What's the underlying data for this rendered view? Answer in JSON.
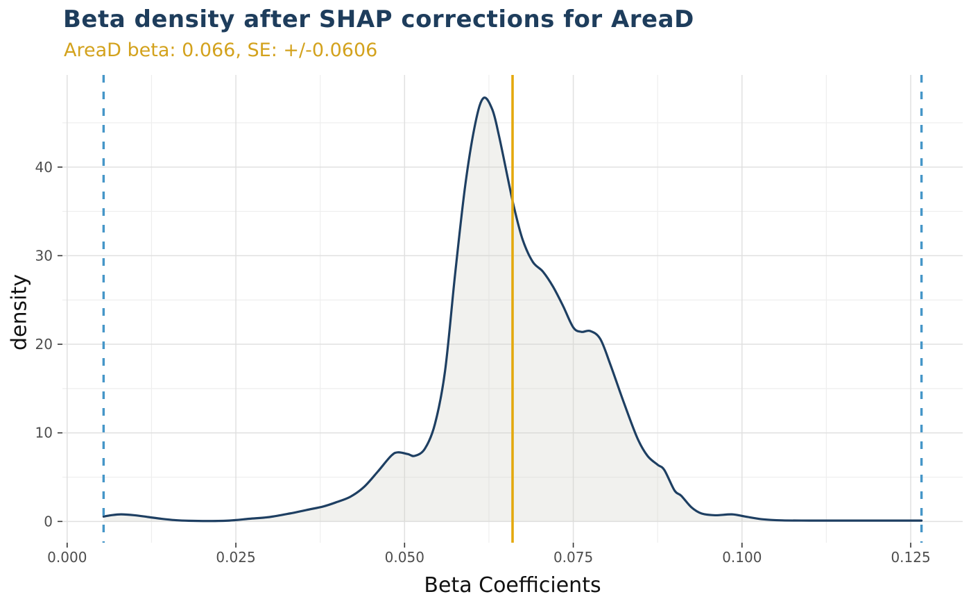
{
  "header": {
    "title": "Beta density after SHAP corrections for AreaD",
    "subtitle": "AreaD beta: 0.066, SE: +/-0.0606"
  },
  "axes": {
    "x_title": "Beta Coefficients",
    "y_title": "density"
  },
  "colors": {
    "title": "#1e3d5c",
    "subtitle": "#d3a21d",
    "curve": "#1e3f62",
    "area_fill": "rgba(209,209,199,0.30)",
    "mean_line": "#e4a90e",
    "se_line": "#4596c8",
    "grid_major": "#e0e0e0",
    "grid_minor": "#eeeeee",
    "tick": "#333333",
    "tick_label": "#4d4d4d",
    "axis_title": "#111111",
    "background": "#ffffff"
  },
  "chart_data": {
    "type": "area",
    "title": "Beta density after SHAP corrections for AreaD",
    "subtitle": "AreaD beta: 0.066, SE: +/-0.0606",
    "xlabel": "Beta Coefficients",
    "ylabel": "density",
    "grid": true,
    "legend": false,
    "xlim": [
      -0.0007,
      0.1327
    ],
    "ylim": [
      -2.4,
      50.4
    ],
    "x_ticks": {
      "values": [
        0.0,
        0.025,
        0.05,
        0.075,
        0.1,
        0.125
      ],
      "labels": [
        "0.000",
        "0.025",
        "0.050",
        "0.075",
        "0.100",
        "0.125"
      ]
    },
    "y_ticks": {
      "values": [
        0,
        10,
        20,
        30,
        40
      ],
      "labels": [
        "0",
        "10",
        "20",
        "30",
        "40"
      ]
    },
    "x_minor": [
      0.0125,
      0.0375,
      0.0625,
      0.0875,
      0.1125
    ],
    "y_minor": [
      5,
      15,
      25,
      35,
      45
    ],
    "series": [
      {
        "name": "beta-density",
        "x": [
          0.0054,
          0.0065,
          0.008,
          0.01,
          0.012,
          0.014,
          0.016,
          0.018,
          0.021,
          0.024,
          0.027,
          0.03,
          0.033,
          0.0355,
          0.038,
          0.04,
          0.042,
          0.044,
          0.046,
          0.048,
          0.049,
          0.0505,
          0.0515,
          0.053,
          0.0545,
          0.056,
          0.0575,
          0.059,
          0.0605,
          0.0617,
          0.063,
          0.064,
          0.0655,
          0.0663,
          0.0675,
          0.069,
          0.0705,
          0.072,
          0.0735,
          0.075,
          0.0762,
          0.0775,
          0.079,
          0.0805,
          0.0825,
          0.0845,
          0.086,
          0.0875,
          0.0885,
          0.09,
          0.091,
          0.0925,
          0.094,
          0.096,
          0.0985,
          0.1005,
          0.103,
          0.106,
          0.11,
          0.115,
          0.12,
          0.1266
        ],
        "y": [
          0.55,
          0.7,
          0.8,
          0.7,
          0.5,
          0.3,
          0.15,
          0.08,
          0.05,
          0.1,
          0.3,
          0.5,
          0.9,
          1.3,
          1.7,
          2.2,
          2.8,
          3.9,
          5.6,
          7.4,
          7.8,
          7.6,
          7.4,
          8.2,
          11.0,
          17.0,
          28.0,
          38.0,
          45.0,
          47.8,
          46.5,
          43.5,
          38.0,
          35.2,
          31.8,
          29.3,
          28.2,
          26.5,
          24.3,
          21.9,
          21.4,
          21.5,
          20.6,
          17.7,
          13.4,
          9.4,
          7.4,
          6.4,
          5.8,
          3.5,
          2.9,
          1.6,
          0.9,
          0.7,
          0.8,
          0.55,
          0.25,
          0.12,
          0.1,
          0.1,
          0.1,
          0.1
        ]
      }
    ],
    "annotations": {
      "mean_vline": {
        "x": 0.066,
        "style": "solid"
      },
      "se_vlines": {
        "x": [
          0.0054,
          0.1266
        ],
        "style": "dashed"
      }
    }
  }
}
